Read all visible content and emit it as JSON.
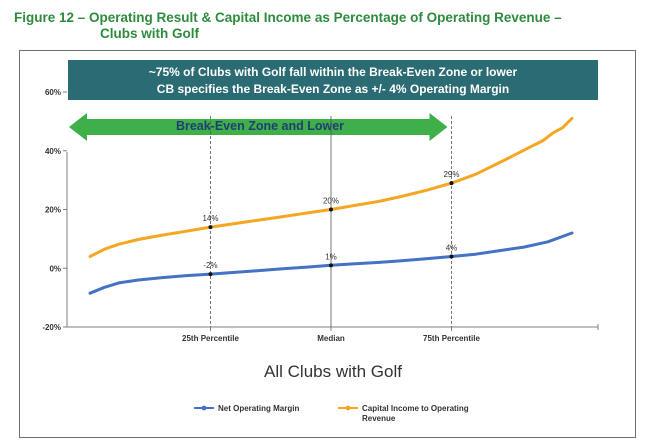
{
  "figure": {
    "title_line1": "Figure 12 – Operating Result & Capital Income as Percentage of Operating Revenue –",
    "title_line2": "Clubs with Golf"
  },
  "chart_data": {
    "type": "line",
    "title": "",
    "xlabel": "All Clubs with Golf",
    "ylabel": "",
    "ylim": [
      -20,
      60
    ],
    "y_ticks": [
      "60%",
      "40%",
      "20%",
      "0%",
      "-20%"
    ],
    "y_tick_values": [
      60,
      40,
      20,
      0,
      -20
    ],
    "x_range": [
      0,
      100
    ],
    "x_markers": [
      {
        "label": "25th Percentile",
        "x": 25
      },
      {
        "label": "Median",
        "x": 50
      },
      {
        "label": "75th Percentile",
        "x": 75
      }
    ],
    "banner": {
      "line1": "~75% of Clubs with Golf fall within the Break-Even Zone or lower",
      "line2": "CB specifies the Break-Even Zone as +/- 4% Operating Margin",
      "color": "#2b6b73"
    },
    "zone_arrow": {
      "label": "Break-Even Zone and Lower",
      "color": "#3faf4a",
      "x_start": 0,
      "x_end": 75
    },
    "legend": {
      "placement": "bottom",
      "items": [
        {
          "label": "Net Operating Margin",
          "color": "#4472c4"
        },
        {
          "label": "Capital Income to Operating Revenue",
          "color": "#f5a623"
        }
      ]
    },
    "series": [
      {
        "name": "Net Operating Margin",
        "color": "#4472c4",
        "x": [
          0,
          3,
          6,
          10,
          15,
          20,
          25,
          30,
          35,
          40,
          45,
          50,
          55,
          60,
          65,
          70,
          75,
          80,
          85,
          90,
          95,
          100
        ],
        "y": [
          -8.5,
          -6.5,
          -5,
          -4,
          -3.2,
          -2.5,
          -2,
          -1.4,
          -0.8,
          -0.2,
          0.4,
          1,
          1.5,
          2,
          2.6,
          3.3,
          4,
          4.8,
          6,
          7.2,
          9,
          12
        ],
        "point_labels": [
          {
            "x": 25,
            "y": -2,
            "text": "-2%"
          },
          {
            "x": 50,
            "y": 1,
            "text": "1%"
          },
          {
            "x": 75,
            "y": 4,
            "text": "4%"
          }
        ]
      },
      {
        "name": "Capital Income to Operating Revenue",
        "color": "#f5a623",
        "x": [
          0,
          3,
          6,
          10,
          15,
          20,
          25,
          30,
          35,
          40,
          45,
          50,
          55,
          60,
          65,
          70,
          75,
          80,
          85,
          88,
          91,
          94,
          96,
          98,
          100
        ],
        "y": [
          4,
          6.5,
          8.2,
          9.8,
          11.3,
          12.6,
          14,
          15.2,
          16.4,
          17.6,
          18.8,
          20,
          21.4,
          22.8,
          24.6,
          26.6,
          29,
          32,
          36,
          38.5,
          41,
          43.5,
          46,
          47.8,
          51
        ],
        "point_labels": [
          {
            "x": 25,
            "y": 14,
            "text": "14%"
          },
          {
            "x": 50,
            "y": 20,
            "text": "20%"
          },
          {
            "x": 75,
            "y": 29,
            "text": "29%"
          }
        ]
      }
    ]
  }
}
